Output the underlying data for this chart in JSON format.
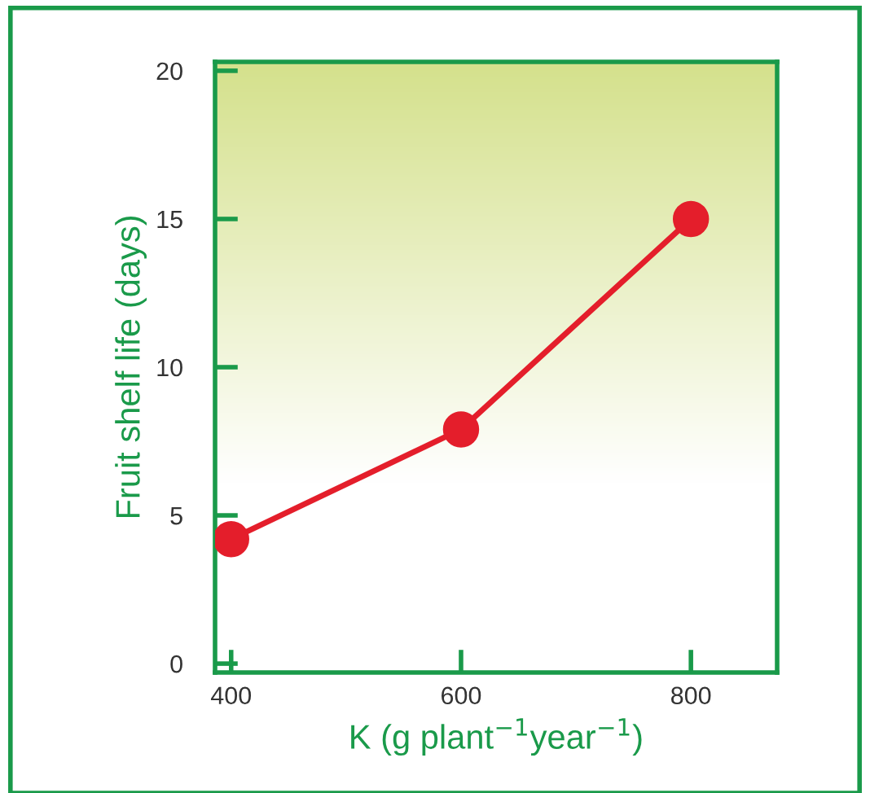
{
  "chart_data": {
    "type": "line",
    "xlabel": "K (g plant$^{−1}$year$^{−1}$)",
    "ylabel": "Fruit shelf life (days)",
    "x": [
      400,
      600,
      800
    ],
    "series": [
      {
        "color": "#e41e2b",
        "values": [
          4.2,
          7.9,
          15
        ]
      }
    ],
    "xlim": [
      386,
      875
    ],
    "ylim": [
      -0.3,
      20.3
    ],
    "xticks": [
      400,
      600,
      800
    ],
    "yticks": [
      0,
      5,
      10,
      15,
      20
    ],
    "marker": "circle",
    "line_style": "solid",
    "grid": false
  }
}
